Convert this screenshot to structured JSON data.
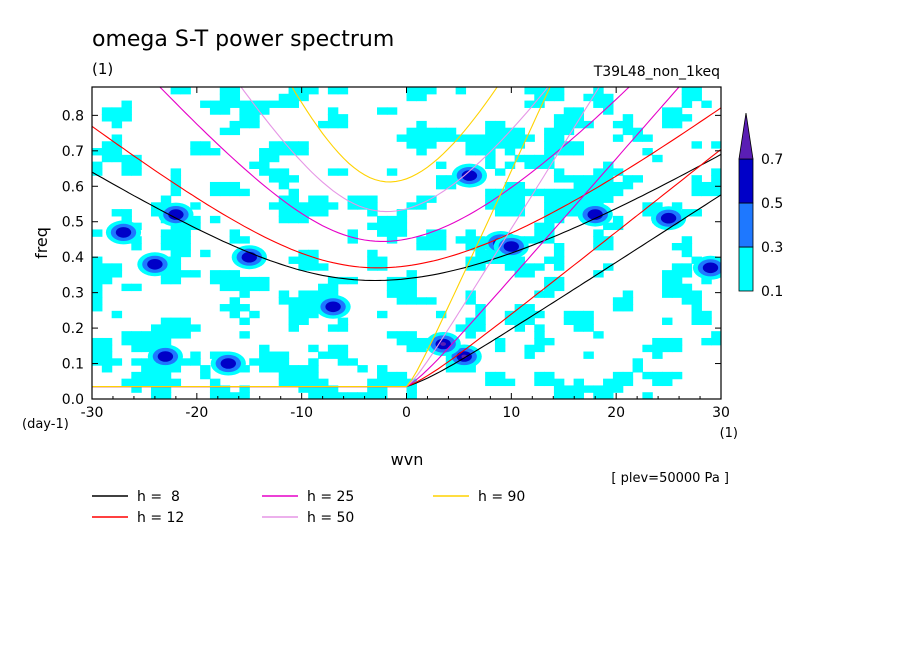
{
  "chart_data": {
    "type": "heatmap",
    "title": "omega S-T power spectrum",
    "subtitle": "(1)",
    "run_label": "T39L48_non_1keq",
    "xlabel": "wvn",
    "ylabel": "freq",
    "x_unit": "(1)",
    "y_unit": "(day-1)",
    "level_note": "[ plev=50000 Pa ]",
    "xlim": [
      -30,
      30
    ],
    "ylim": [
      0.0,
      0.88
    ],
    "x_ticks": [
      -30,
      -20,
      -10,
      0,
      10,
      20,
      30
    ],
    "x_tick_labels": [
      "-30",
      "-20",
      "-10",
      "0",
      "10",
      "20",
      "30"
    ],
    "y_ticks": [
      0.0,
      0.1,
      0.2,
      0.3,
      0.4,
      0.5,
      0.6,
      0.7,
      0.8
    ],
    "y_tick_labels": [
      "0.0",
      "0.1",
      "0.2",
      "0.3",
      "0.4",
      "0.5",
      "0.6",
      "0.7",
      "0.8"
    ],
    "contour_levels": [
      0.1,
      0.3,
      0.5,
      0.7
    ],
    "colorbar": {
      "labels": [
        "0.1",
        "0.3",
        "0.5",
        "0.7"
      ],
      "colors": [
        "#00ffff",
        "#1e78ff",
        "#0000c8",
        "#5a1eb4"
      ]
    },
    "hotspots": [
      {
        "wvn": 5.5,
        "freq": 0.12,
        "level": 0.7
      },
      {
        "wvn": 3.5,
        "freq": 0.155,
        "level": 0.7
      },
      {
        "wvn": -17,
        "freq": 0.1,
        "level": 0.5
      },
      {
        "wvn": 18,
        "freq": 0.52,
        "level": 0.5
      },
      {
        "wvn": -27,
        "freq": 0.47,
        "level": 0.5
      },
      {
        "wvn": -22,
        "freq": 0.52,
        "level": 0.5
      },
      {
        "wvn": -15,
        "freq": 0.4,
        "level": 0.5
      },
      {
        "wvn": -7,
        "freq": 0.26,
        "level": 0.5
      },
      {
        "wvn": 9,
        "freq": 0.44,
        "level": 0.5
      },
      {
        "wvn": 10,
        "freq": 0.43,
        "level": 0.5
      },
      {
        "wvn": 25,
        "freq": 0.51,
        "level": 0.5
      },
      {
        "wvn": 29,
        "freq": 0.37,
        "level": 0.5
      },
      {
        "wvn": -23,
        "freq": 0.12,
        "level": 0.5
      },
      {
        "wvn": -24,
        "freq": 0.38,
        "level": 0.5
      },
      {
        "wvn": 6,
        "freq": 0.63,
        "level": 0.5
      }
    ],
    "series": [
      {
        "name": "h =  8",
        "h": 8,
        "color": "#000000"
      },
      {
        "name": "h = 12",
        "h": 12,
        "color": "#ff0000"
      },
      {
        "name": "h = 25",
        "h": 25,
        "color": "#e600c8"
      },
      {
        "name": "h = 50",
        "h": 50,
        "color": "#e696e6"
      },
      {
        "name": "h = 90",
        "h": 90,
        "color": "#ffd200"
      }
    ]
  }
}
